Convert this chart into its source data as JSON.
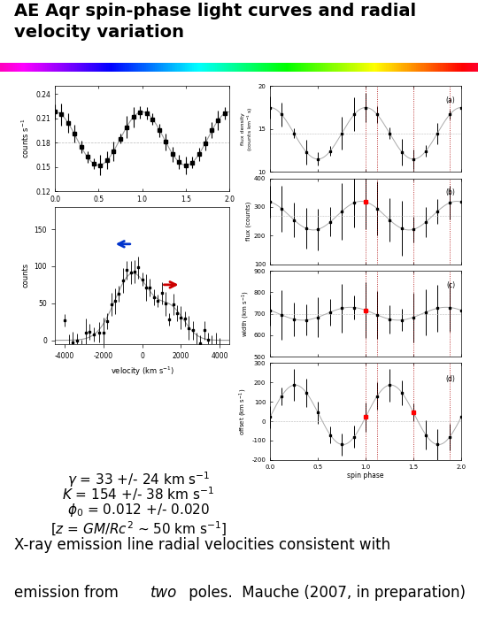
{
  "title_line1": "AE Aqr spin-phase light curves and radial",
  "title_line2": "velocity variation",
  "title_fontsize": 14,
  "bottom_text_line1": "X-ray emission line radial velocities consistent with",
  "bottom_text_line2_normal": "emission from ",
  "bottom_text_line2_italic": "two",
  "bottom_text_line2_end": " poles.  Mauche (2007, in preparation)",
  "gamma_lines": [
    "γ = 33 +/- 24 km s-1",
    "K = 154 +/- 38 km s-1",
    "ϕ0 = 0.012 +/- 0.020",
    "[z = GM/Rc2 ~ 50 km s-1]"
  ],
  "background_color": "#ffffff",
  "text_color": "#000000"
}
